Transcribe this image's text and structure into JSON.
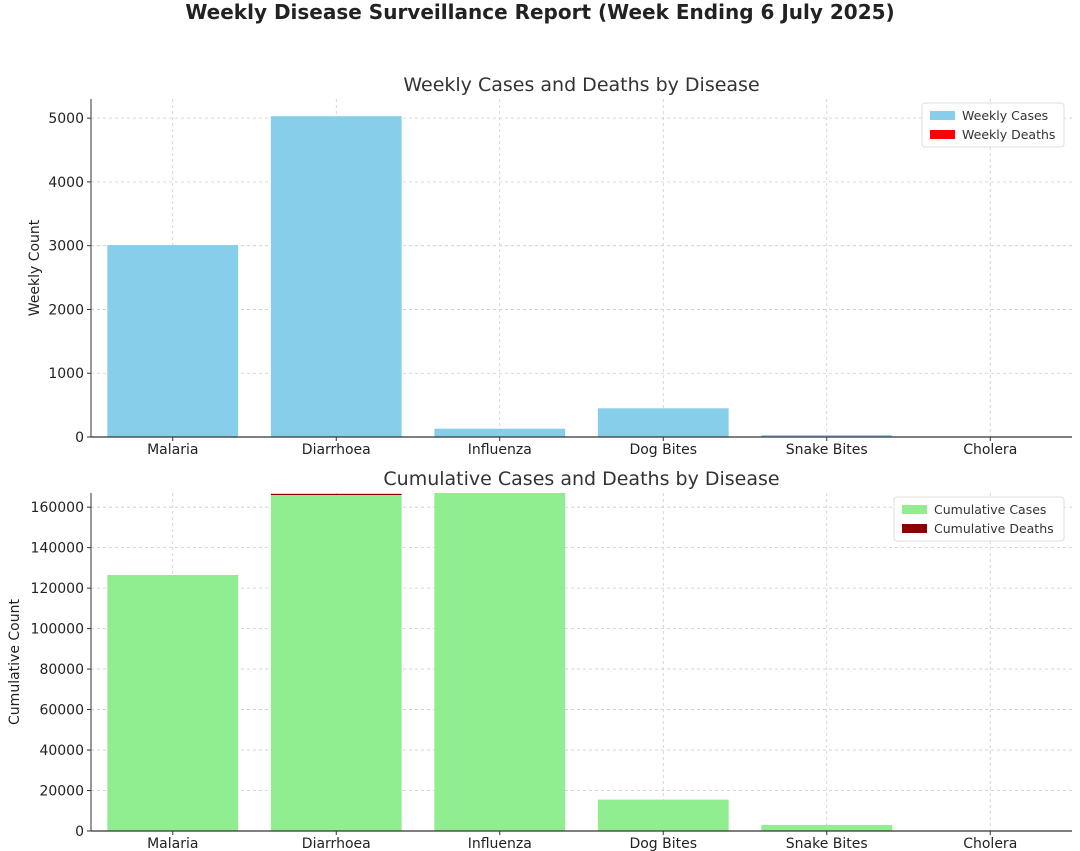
{
  "figure": {
    "title": "Weekly Disease Surveillance Report (Week Ending 6 July 2025)"
  },
  "chart_data": [
    {
      "type": "bar",
      "title": "Weekly Cases and Deaths by Disease",
      "xlabel": "",
      "ylabel": "Weekly Count",
      "categories": [
        "Malaria",
        "Diarrhoea",
        "Influenza",
        "Dog Bites",
        "Snake Bites",
        "Cholera"
      ],
      "series": [
        {
          "name": "Weekly Cases",
          "color": "#87ceeb",
          "values": [
            3010,
            5030,
            130,
            450,
            30,
            0
          ]
        },
        {
          "name": "Weekly Deaths",
          "color": "#ff0000",
          "values": [
            0,
            0,
            0,
            0,
            0,
            0
          ]
        }
      ],
      "ylim": [
        0,
        5300
      ],
      "yticks": [
        0,
        1000,
        2000,
        3000,
        4000,
        5000
      ],
      "ytick_labels": [
        "0",
        "1000",
        "2000",
        "3000",
        "4000",
        "5000"
      ],
      "grid": true,
      "legend": "top-right"
    },
    {
      "type": "bar",
      "title": "Cumulative Cases and Deaths by Disease",
      "xlabel": "",
      "ylabel": "Cumulative Count",
      "categories": [
        "Malaria",
        "Diarrhoea",
        "Influenza",
        "Dog Bites",
        "Snake Bites",
        "Cholera"
      ],
      "series": [
        {
          "name": "Cumulative Cases",
          "color": "#90ee90",
          "values": [
            126500,
            166000,
            167000,
            15500,
            3000,
            0
          ]
        },
        {
          "name": "Cumulative Deaths",
          "color": "#8b0000",
          "values": [
            0,
            500,
            0,
            0,
            0,
            0
          ]
        }
      ],
      "ylim": [
        0,
        167000
      ],
      "yticks": [
        0,
        20000,
        40000,
        60000,
        80000,
        100000,
        120000,
        140000,
        160000
      ],
      "ytick_labels": [
        "0",
        "20000",
        "40000",
        "60000",
        "80000",
        "100000",
        "120000",
        "140000",
        "160000"
      ],
      "grid": true,
      "legend": "top-right"
    }
  ]
}
